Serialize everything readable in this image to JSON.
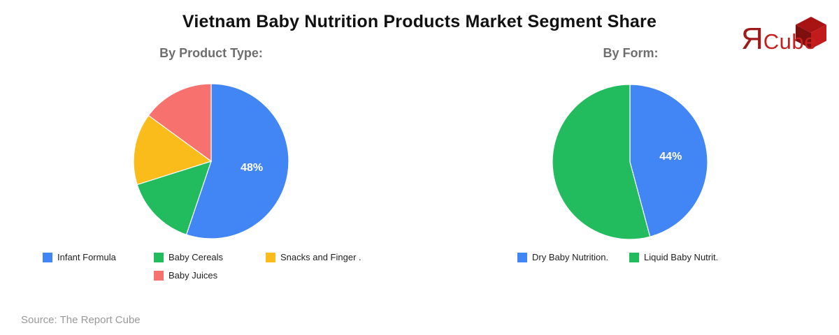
{
  "title": "Vietnam Baby Nutrition Products Market Segment Share",
  "source": "Source: The Report Cube",
  "logo": {
    "mark": "Я",
    "word": "Cube",
    "colors": {
      "mark": "#9E1A1A",
      "word": "#C5201D",
      "cube_top": "#A81414",
      "cube_left": "#7E0F0F",
      "cube_right": "#C11B1B"
    }
  },
  "chart_data": [
    {
      "type": "pie",
      "title": "By Product Type:",
      "legend_position": "bottom",
      "start_angle_deg": 0,
      "direction": "clockwise",
      "slices": [
        {
          "label": "Infant Formula",
          "value": 48,
          "display": "48%",
          "color": "#4285F4"
        },
        {
          "label": "Baby Cereals",
          "value": 13,
          "color": "#22BC5E"
        },
        {
          "label": "Snacks and Finger .",
          "value": 13,
          "color": "#F9BC1B"
        },
        {
          "label": "Baby Juices",
          "value": 13,
          "color": "#F7716F"
        }
      ]
    },
    {
      "type": "pie",
      "title": "By Form:",
      "legend_position": "bottom",
      "start_angle_deg": 0,
      "direction": "clockwise",
      "slices": [
        {
          "label": "Dry Baby Nutrition.",
          "value": 44,
          "display": "44%",
          "color": "#4285F4"
        },
        {
          "label": "Liquid Baby Nutrit.",
          "value": 52,
          "color": "#22BC5E"
        }
      ]
    }
  ]
}
